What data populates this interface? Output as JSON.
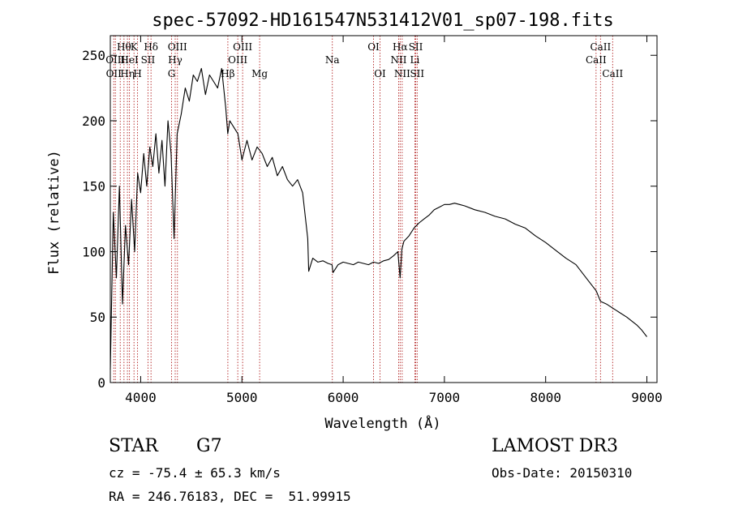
{
  "chart_data": {
    "type": "line",
    "title": "spec-57092-HD161547N531412V01_sp07-198.fits",
    "xlabel": "Wavelength (Å)",
    "ylabel": "Flux (relative)",
    "xlim": [
      3700,
      9100
    ],
    "ylim": [
      0,
      265
    ],
    "x_ticks": [
      4000,
      5000,
      6000,
      7000,
      8000,
      9000
    ],
    "y_ticks": [
      0,
      50,
      100,
      150,
      200,
      250
    ],
    "grid": false,
    "series": [
      {
        "x": [
          3700,
          3730,
          3760,
          3790,
          3820,
          3850,
          3880,
          3910,
          3940,
          3970,
          4000,
          4030,
          4060,
          4090,
          4120,
          4150,
          4180,
          4210,
          4240,
          4270,
          4300,
          4330,
          4360,
          4400,
          4440,
          4480,
          4520,
          4560,
          4600,
          4640,
          4680,
          4720,
          4760,
          4800,
          4840,
          4860,
          4880,
          4920,
          4960,
          5000,
          5050,
          5100,
          5150,
          5200,
          5250,
          5300,
          5350,
          5400,
          5450,
          5500,
          5550,
          5600,
          5650,
          5660,
          5700,
          5750,
          5800,
          5850,
          5890,
          5900,
          5950,
          6000,
          6050,
          6100,
          6150,
          6200,
          6250,
          6300,
          6350,
          6400,
          6450,
          6500,
          6540,
          6563,
          6580,
          6600,
          6650,
          6700,
          6750,
          6800,
          6850,
          6900,
          6950,
          7000,
          7050,
          7100,
          7150,
          7200,
          7300,
          7400,
          7500,
          7600,
          7700,
          7800,
          7900,
          8000,
          8100,
          8200,
          8300,
          8400,
          8500,
          8542,
          8600,
          8700,
          8800,
          8900,
          8950,
          9000
        ],
        "y": [
          10,
          130,
          80,
          150,
          60,
          120,
          90,
          140,
          100,
          160,
          145,
          175,
          150,
          180,
          165,
          190,
          160,
          185,
          150,
          200,
          175,
          110,
          190,
          205,
          225,
          215,
          235,
          230,
          240,
          220,
          235,
          230,
          225,
          240,
          210,
          190,
          200,
          195,
          190,
          170,
          185,
          170,
          180,
          175,
          165,
          172,
          158,
          165,
          155,
          150,
          155,
          145,
          110,
          85,
          95,
          92,
          93,
          91,
          90,
          84,
          90,
          92,
          91,
          90,
          92,
          91,
          90,
          92,
          91,
          93,
          94,
          97,
          100,
          80,
          102,
          108,
          112,
          118,
          122,
          125,
          128,
          132,
          134,
          136,
          136,
          137,
          136,
          135,
          132,
          130,
          127,
          125,
          121,
          118,
          112,
          107,
          101,
          95,
          90,
          80,
          70,
          62,
          60,
          55,
          50,
          44,
          40,
          35
        ]
      }
    ],
    "line_markers": [
      {
        "wavelength": 3734,
        "labels": [
          "",
          "",
          "OII"
        ]
      },
      {
        "wavelength": 3750,
        "labels": [
          "",
          "OIII",
          ""
        ]
      },
      {
        "wavelength": 3798,
        "labels": [
          "",
          "",
          ""
        ]
      },
      {
        "wavelength": 3835,
        "labels": [
          "Hθ",
          "",
          ""
        ]
      },
      {
        "wavelength": 3869,
        "labels": [
          "",
          "",
          "Hη"
        ]
      },
      {
        "wavelength": 3889,
        "labels": [
          "",
          "HeI",
          ""
        ]
      },
      {
        "wavelength": 3934,
        "labels": [
          "K",
          "",
          ""
        ]
      },
      {
        "wavelength": 3969,
        "labels": [
          "",
          "",
          "H"
        ]
      },
      {
        "wavelength": 4072,
        "labels": [
          "",
          "SII",
          ""
        ]
      },
      {
        "wavelength": 4102,
        "labels": [
          "Hδ",
          "",
          ""
        ]
      },
      {
        "wavelength": 4305,
        "labels": [
          "",
          "",
          "G"
        ]
      },
      {
        "wavelength": 4341,
        "labels": [
          "",
          "Hγ",
          ""
        ]
      },
      {
        "wavelength": 4363,
        "labels": [
          "OIII",
          "",
          ""
        ]
      },
      {
        "wavelength": 4861,
        "labels": [
          "",
          "",
          "Hβ"
        ]
      },
      {
        "wavelength": 4959,
        "labels": [
          "",
          "OIII",
          ""
        ]
      },
      {
        "wavelength": 5007,
        "labels": [
          "OIII",
          "",
          ""
        ]
      },
      {
        "wavelength": 5175,
        "labels": [
          "",
          "",
          "Mg"
        ]
      },
      {
        "wavelength": 5893,
        "labels": [
          "",
          "Na",
          ""
        ]
      },
      {
        "wavelength": 6300,
        "labels": [
          "OI",
          "",
          ""
        ]
      },
      {
        "wavelength": 6364,
        "labels": [
          "",
          "",
          "OI"
        ]
      },
      {
        "wavelength": 6548,
        "labels": [
          "",
          "NII",
          ""
        ]
      },
      {
        "wavelength": 6563,
        "labels": [
          "Hα",
          "",
          ""
        ]
      },
      {
        "wavelength": 6583,
        "labels": [
          "",
          "",
          "NII"
        ]
      },
      {
        "wavelength": 6708,
        "labels": [
          "",
          "Li",
          ""
        ]
      },
      {
        "wavelength": 6717,
        "labels": [
          "SII",
          "",
          ""
        ]
      },
      {
        "wavelength": 6731,
        "labels": [
          "",
          "",
          "SII"
        ]
      },
      {
        "wavelength": 8498,
        "labels": [
          "",
          "CaII",
          ""
        ]
      },
      {
        "wavelength": 8542,
        "labels": [
          "CaII",
          "",
          ""
        ]
      },
      {
        "wavelength": 8662,
        "labels": [
          "",
          "",
          "CaII"
        ]
      }
    ]
  },
  "info": {
    "class": "STAR",
    "subclass": "G7",
    "survey": "LAMOST DR3",
    "redshift": "cz = -75.4 ± 65.3 km/s",
    "obs_date": "Obs-Date: 20150310",
    "coords": "RA = 246.76183, DEC =  51.99915"
  },
  "colors": {
    "spectrum": "#000000",
    "marker": "#b22222",
    "axes": "#000000"
  }
}
